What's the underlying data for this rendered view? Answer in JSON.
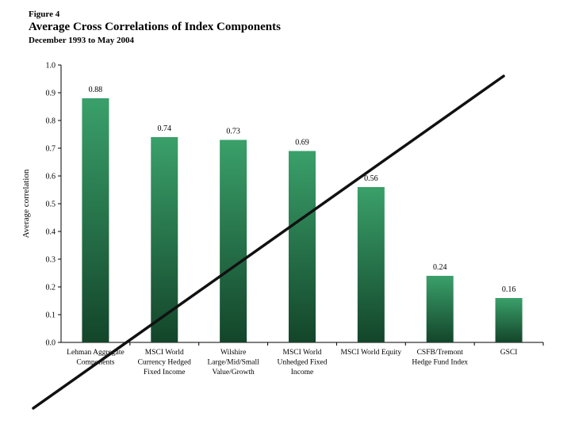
{
  "figure": {
    "label": "Figure 4",
    "title": "Average Cross Correlations of Index Components",
    "subtitle": "December 1993 to May 2004"
  },
  "chart_data": {
    "type": "bar",
    "ylabel": "Average correlation",
    "xlabel": "",
    "ylim": [
      0,
      1.0
    ],
    "yticks": [
      "0.0",
      "0.1",
      "0.2",
      "0.3",
      "0.4",
      "0.5",
      "0.6",
      "0.7",
      "0.8",
      "0.9",
      "1.0"
    ],
    "grid": false,
    "categories": [
      [
        "Lehman Aggregate",
        "Components"
      ],
      [
        "MSCI World",
        "Currency Hedged",
        "Fixed Income"
      ],
      [
        "Wilshire",
        "Large/Mid/Small",
        "Value/Growth"
      ],
      [
        "MSCI World",
        "Unhedged Fixed",
        "Income"
      ],
      [
        "MSCI World Equity"
      ],
      [
        "CSFB/Tremont",
        "Hedge Fund Index"
      ],
      [
        "GSCI"
      ]
    ],
    "values": [
      0.88,
      0.74,
      0.73,
      0.69,
      0.56,
      0.24,
      0.16
    ],
    "data_labels": [
      "0.88",
      "0.74",
      "0.73",
      "0.69",
      "0.56",
      "0.24",
      "0.16"
    ],
    "bar_color_top": "#3aa06a",
    "bar_color_bottom": "#13452a"
  },
  "annotation": {
    "stroke_color": "#111111"
  }
}
